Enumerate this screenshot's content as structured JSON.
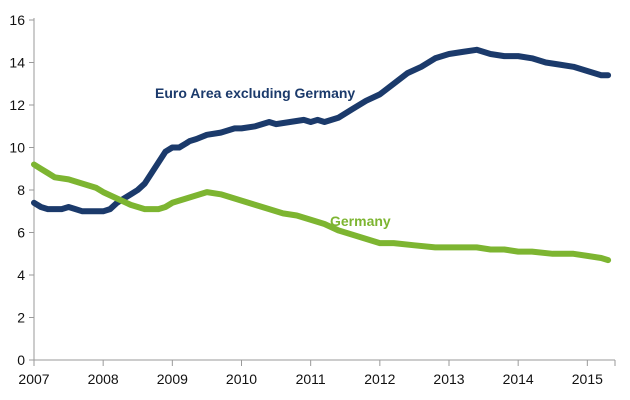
{
  "chart_data": {
    "type": "line",
    "title": "",
    "xlabel": "",
    "ylabel": "",
    "xlim": [
      2007.0,
      2015.4
    ],
    "ylim": [
      0,
      16
    ],
    "grid": false,
    "legend": "none",
    "x_ticks": [
      "2007",
      "2008",
      "2009",
      "2010",
      "2011",
      "2012",
      "2013",
      "2014",
      "2015"
    ],
    "y_ticks": [
      "0",
      "2",
      "4",
      "6",
      "8",
      "10",
      "12",
      "14",
      "16"
    ],
    "series": [
      {
        "name": "Euro Area excluding Germany",
        "color": "#1b3a6b",
        "x": [
          2007.0,
          2007.1,
          2007.2,
          2007.4,
          2007.5,
          2007.6,
          2007.7,
          2007.8,
          2007.9,
          2008.0,
          2008.1,
          2008.2,
          2008.3,
          2008.4,
          2008.5,
          2008.6,
          2008.7,
          2008.8,
          2008.9,
          2009.0,
          2009.1,
          2009.2,
          2009.25,
          2009.35,
          2009.5,
          2009.7,
          2009.9,
          2010.0,
          2010.2,
          2010.4,
          2010.5,
          2010.7,
          2010.9,
          2011.0,
          2011.1,
          2011.2,
          2011.3,
          2011.4,
          2011.6,
          2011.8,
          2012.0,
          2012.2,
          2012.4,
          2012.6,
          2012.8,
          2013.0,
          2013.2,
          2013.4,
          2013.6,
          2013.8,
          2014.0,
          2014.2,
          2014.4,
          2014.6,
          2014.8,
          2015.0,
          2015.2,
          2015.3
        ],
        "values": [
          7.4,
          7.2,
          7.1,
          7.1,
          7.2,
          7.1,
          7.0,
          7.0,
          7.0,
          7.0,
          7.1,
          7.4,
          7.6,
          7.8,
          8.0,
          8.3,
          8.8,
          9.3,
          9.8,
          10.0,
          10.0,
          10.2,
          10.3,
          10.4,
          10.6,
          10.7,
          10.9,
          10.9,
          11.0,
          11.2,
          11.1,
          11.2,
          11.3,
          11.2,
          11.3,
          11.2,
          11.3,
          11.4,
          11.8,
          12.2,
          12.5,
          13.0,
          13.5,
          13.8,
          14.2,
          14.4,
          14.5,
          14.6,
          14.4,
          14.3,
          14.3,
          14.2,
          14.0,
          13.9,
          13.8,
          13.6,
          13.4,
          13.4
        ]
      },
      {
        "name": "Germany",
        "color": "#7db531",
        "x": [
          2007.0,
          2007.1,
          2007.2,
          2007.3,
          2007.5,
          2007.7,
          2007.9,
          2008.0,
          2008.2,
          2008.4,
          2008.6,
          2008.8,
          2008.9,
          2009.0,
          2009.2,
          2009.4,
          2009.5,
          2009.7,
          2009.9,
          2010.0,
          2010.2,
          2010.4,
          2010.6,
          2010.8,
          2011.0,
          2011.2,
          2011.4,
          2011.6,
          2011.8,
          2012.0,
          2012.2,
          2012.5,
          2012.8,
          2013.0,
          2013.2,
          2013.4,
          2013.6,
          2013.8,
          2014.0,
          2014.2,
          2014.5,
          2014.8,
          2015.0,
          2015.2,
          2015.3
        ],
        "values": [
          9.2,
          9.0,
          8.8,
          8.6,
          8.5,
          8.3,
          8.1,
          7.9,
          7.6,
          7.3,
          7.1,
          7.1,
          7.2,
          7.4,
          7.6,
          7.8,
          7.9,
          7.8,
          7.6,
          7.5,
          7.3,
          7.1,
          6.9,
          6.8,
          6.6,
          6.4,
          6.1,
          5.9,
          5.7,
          5.5,
          5.5,
          5.4,
          5.3,
          5.3,
          5.3,
          5.3,
          5.2,
          5.2,
          5.1,
          5.1,
          5.0,
          5.0,
          4.9,
          4.8,
          4.7
        ]
      }
    ],
    "annotations": [
      {
        "text": "Euro Area excluding Germany",
        "series": 0
      },
      {
        "text": "Germany",
        "series": 1
      }
    ]
  }
}
